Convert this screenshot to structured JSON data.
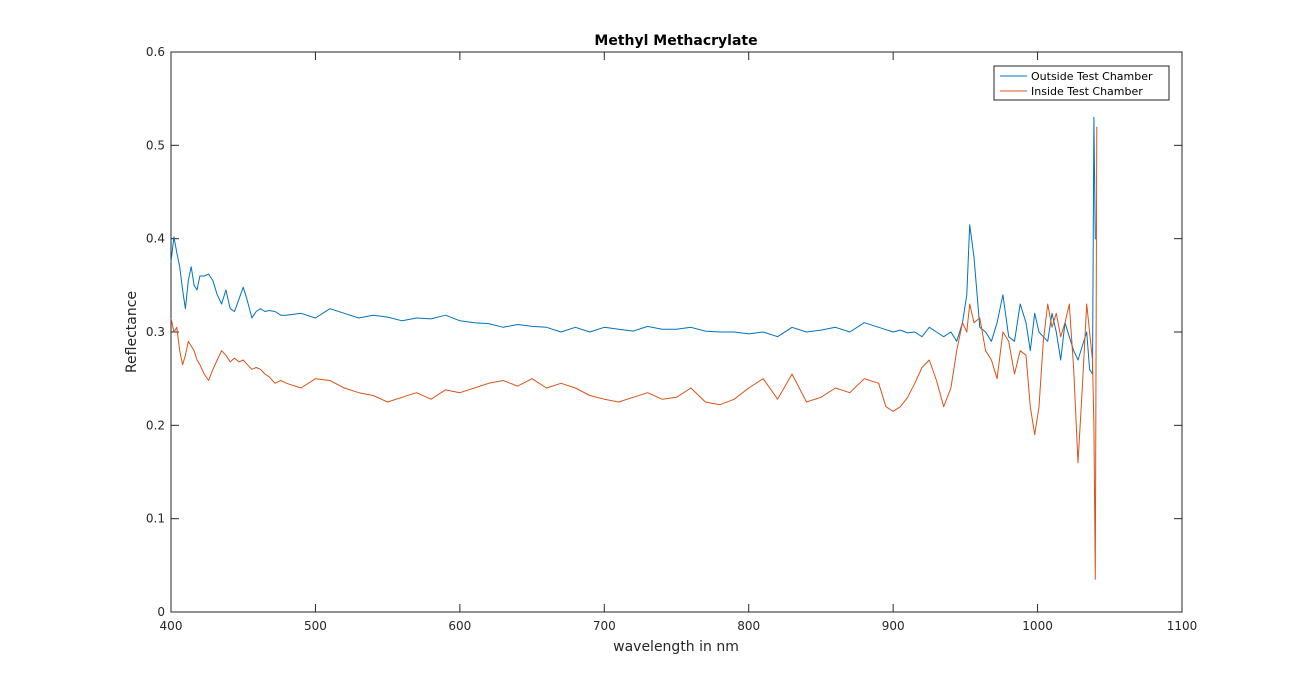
{
  "chart_data": {
    "type": "line",
    "title": "Methyl Methacrylate",
    "xlabel": "wavelength in nm",
    "ylabel": "Reflectance",
    "xlim": [
      400,
      1100
    ],
    "ylim": [
      0,
      0.6
    ],
    "xticks": [
      "400",
      "500",
      "600",
      "700",
      "800",
      "900",
      "1000",
      "1100"
    ],
    "yticks": [
      "0",
      "0.1",
      "0.2",
      "0.3",
      "0.4",
      "0.5",
      "0.6"
    ],
    "grid": false,
    "legend_position": "top-right",
    "series": [
      {
        "name": "Outside Test Chamber",
        "color": "#0072BD",
        "x": [
          400,
          402,
          404,
          406,
          408,
          410,
          412,
          414,
          416,
          418,
          420,
          423,
          426,
          429,
          432,
          435,
          438,
          441,
          444,
          447,
          450,
          453,
          456,
          459,
          462,
          465,
          468,
          472,
          476,
          480,
          490,
          500,
          510,
          520,
          530,
          540,
          550,
          560,
          570,
          580,
          590,
          600,
          610,
          620,
          630,
          640,
          650,
          660,
          670,
          680,
          690,
          700,
          710,
          720,
          730,
          740,
          750,
          760,
          770,
          780,
          790,
          800,
          810,
          820,
          830,
          840,
          850,
          860,
          870,
          880,
          890,
          900,
          905,
          910,
          915,
          920,
          925,
          930,
          935,
          940,
          944,
          948,
          951,
          953,
          956,
          960,
          964,
          968,
          972,
          976,
          980,
          984,
          988,
          992,
          995,
          998,
          1001,
          1004,
          1007,
          1010,
          1013,
          1016,
          1019,
          1022,
          1025,
          1028,
          1031,
          1034,
          1036,
          1038,
          1039,
          1040,
          1041
        ],
        "values": [
          0.375,
          0.402,
          0.385,
          0.37,
          0.345,
          0.325,
          0.355,
          0.37,
          0.35,
          0.345,
          0.36,
          0.36,
          0.362,
          0.355,
          0.34,
          0.33,
          0.345,
          0.325,
          0.322,
          0.335,
          0.348,
          0.333,
          0.315,
          0.322,
          0.325,
          0.322,
          0.323,
          0.322,
          0.318,
          0.318,
          0.32,
          0.315,
          0.325,
          0.32,
          0.315,
          0.318,
          0.316,
          0.312,
          0.315,
          0.314,
          0.318,
          0.312,
          0.31,
          0.309,
          0.305,
          0.308,
          0.306,
          0.305,
          0.3,
          0.305,
          0.3,
          0.305,
          0.303,
          0.301,
          0.306,
          0.303,
          0.303,
          0.305,
          0.301,
          0.3,
          0.3,
          0.298,
          0.3,
          0.295,
          0.305,
          0.3,
          0.302,
          0.305,
          0.3,
          0.31,
          0.305,
          0.3,
          0.302,
          0.299,
          0.3,
          0.295,
          0.305,
          0.3,
          0.295,
          0.3,
          0.29,
          0.31,
          0.34,
          0.415,
          0.38,
          0.305,
          0.3,
          0.29,
          0.31,
          0.34,
          0.295,
          0.29,
          0.33,
          0.31,
          0.28,
          0.32,
          0.3,
          0.295,
          0.29,
          0.32,
          0.3,
          0.27,
          0.31,
          0.295,
          0.28,
          0.27,
          0.285,
          0.3,
          0.26,
          0.255,
          0.53,
          0.4,
          0.4
        ]
      },
      {
        "name": "Inside Test Chamber",
        "color": "#D95319",
        "x": [
          400,
          402,
          404,
          406,
          408,
          410,
          412,
          414,
          416,
          418,
          420,
          423,
          426,
          429,
          432,
          435,
          438,
          441,
          444,
          447,
          450,
          453,
          456,
          459,
          462,
          465,
          468,
          472,
          476,
          480,
          490,
          500,
          510,
          520,
          530,
          540,
          550,
          560,
          570,
          580,
          590,
          600,
          610,
          620,
          630,
          640,
          650,
          660,
          670,
          680,
          690,
          700,
          710,
          720,
          730,
          740,
          750,
          760,
          770,
          780,
          790,
          800,
          810,
          820,
          830,
          840,
          850,
          860,
          870,
          880,
          890,
          895,
          900,
          905,
          910,
          915,
          920,
          925,
          930,
          935,
          940,
          944,
          948,
          951,
          953,
          956,
          960,
          964,
          968,
          972,
          976,
          980,
          984,
          988,
          992,
          995,
          998,
          1001,
          1004,
          1007,
          1010,
          1013,
          1016,
          1019,
          1022,
          1025,
          1028,
          1031,
          1034,
          1036,
          1038,
          1039,
          1040,
          1041
        ],
        "values": [
          0.315,
          0.3,
          0.305,
          0.28,
          0.265,
          0.275,
          0.29,
          0.285,
          0.28,
          0.27,
          0.265,
          0.255,
          0.248,
          0.26,
          0.27,
          0.28,
          0.275,
          0.268,
          0.272,
          0.268,
          0.27,
          0.265,
          0.26,
          0.262,
          0.26,
          0.255,
          0.252,
          0.245,
          0.248,
          0.245,
          0.24,
          0.25,
          0.248,
          0.24,
          0.235,
          0.232,
          0.225,
          0.23,
          0.235,
          0.228,
          0.238,
          0.235,
          0.24,
          0.245,
          0.248,
          0.242,
          0.25,
          0.24,
          0.245,
          0.24,
          0.232,
          0.228,
          0.225,
          0.23,
          0.235,
          0.228,
          0.23,
          0.24,
          0.225,
          0.222,
          0.228,
          0.24,
          0.25,
          0.228,
          0.255,
          0.225,
          0.23,
          0.24,
          0.235,
          0.25,
          0.245,
          0.22,
          0.215,
          0.22,
          0.23,
          0.245,
          0.262,
          0.27,
          0.248,
          0.22,
          0.24,
          0.28,
          0.31,
          0.3,
          0.33,
          0.31,
          0.315,
          0.28,
          0.27,
          0.25,
          0.3,
          0.29,
          0.255,
          0.28,
          0.275,
          0.22,
          0.19,
          0.22,
          0.29,
          0.33,
          0.305,
          0.32,
          0.295,
          0.31,
          0.33,
          0.26,
          0.16,
          0.24,
          0.33,
          0.3,
          0.27,
          0.2,
          0.035,
          0.52
        ]
      }
    ]
  }
}
